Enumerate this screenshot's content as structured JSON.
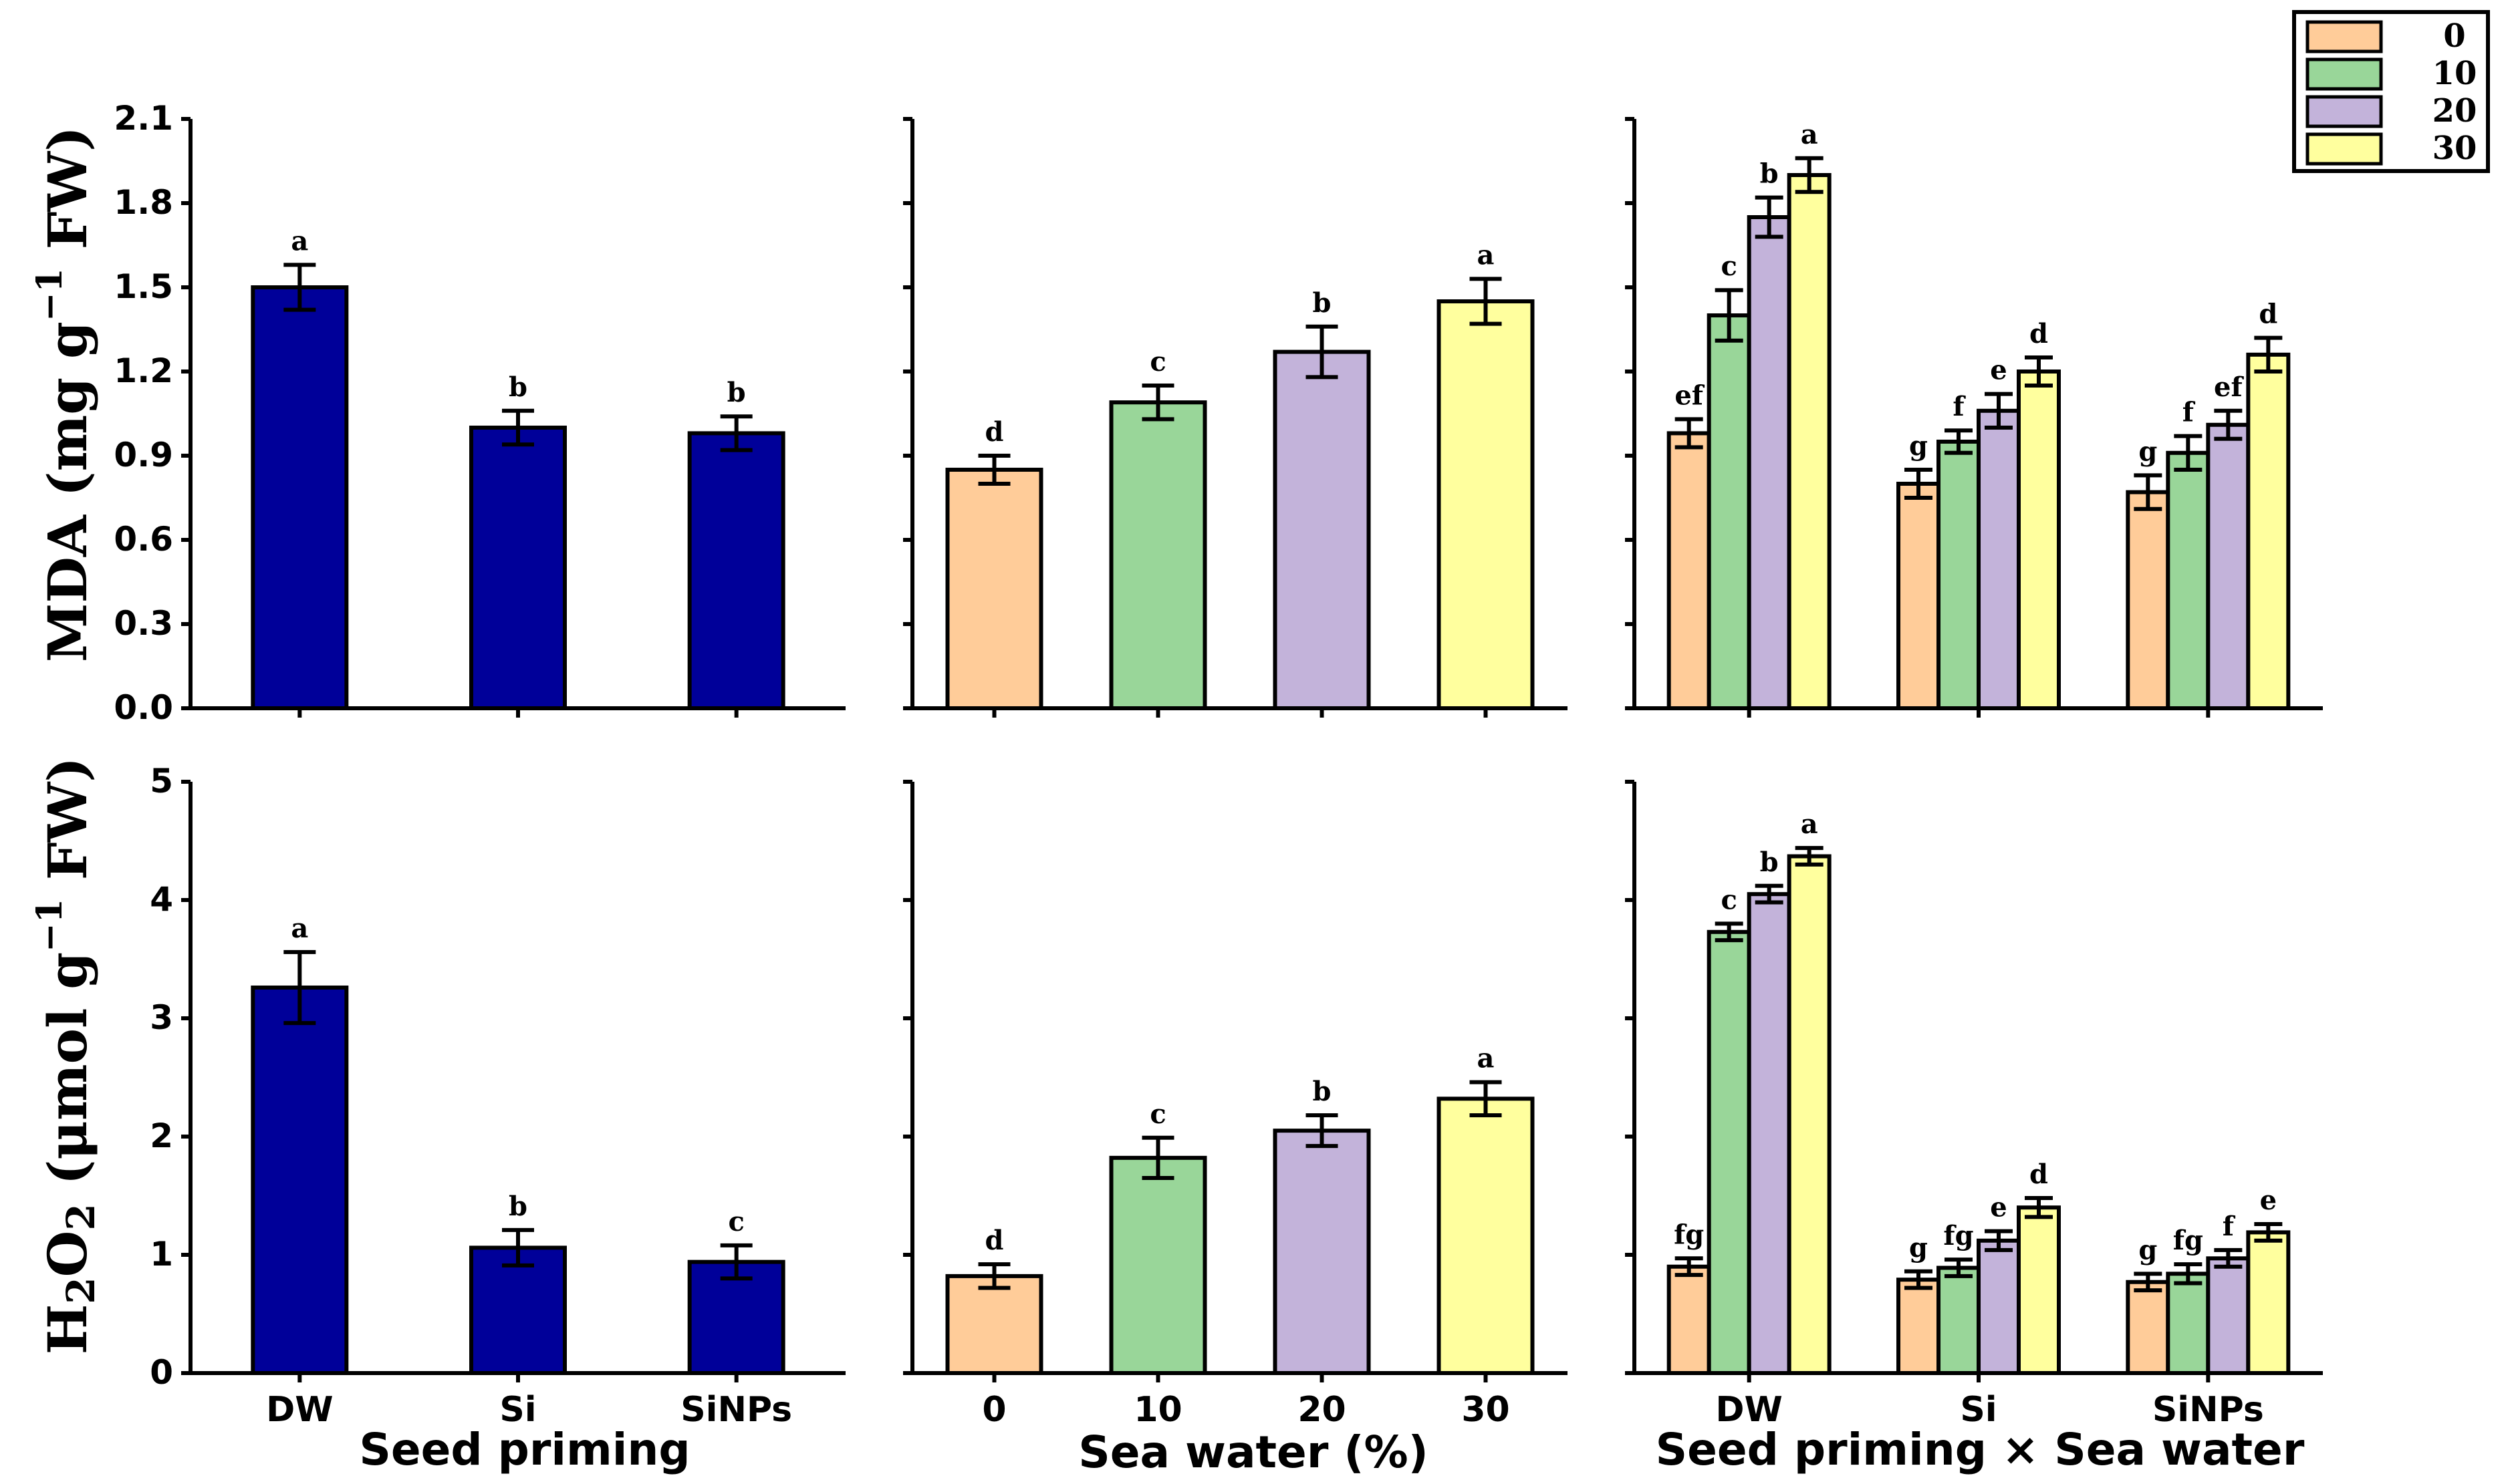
{
  "legend": {
    "title": "",
    "entries": [
      {
        "label": "0",
        "color": "#FFCC99"
      },
      {
        "label": "10",
        "color": "#99D699"
      },
      {
        "label": "20",
        "color": "#C3B3DA"
      },
      {
        "label": "30",
        "color": "#FFFF9E"
      }
    ]
  },
  "colors": {
    "seed_bar": "#000099",
    "sw0": "#FFCC99",
    "sw10": "#99D699",
    "sw20": "#C3B3DA",
    "sw30": "#FFFF9E"
  },
  "xlabels": {
    "seed": "Seed priming",
    "sea": "Sea water (%)",
    "inter": "Seed priming × Sea water"
  },
  "chart_data": [
    {
      "id": "mda-seed",
      "type": "bar",
      "title": "",
      "ylabel": "MDA (mg g−1 FW)",
      "xlabel": "Seed priming",
      "ylim": [
        0,
        2.1
      ],
      "yticks": [
        "0.0",
        "0.3",
        "0.6",
        "0.9",
        "1.2",
        "1.5",
        "1.8",
        "2.1"
      ],
      "categories": [
        "DW",
        "Si",
        "SiNPs"
      ],
      "values": [
        1.5,
        1.0,
        0.98
      ],
      "errors": [
        0.08,
        0.06,
        0.06
      ],
      "letters": [
        "a",
        "b",
        "b"
      ]
    },
    {
      "id": "mda-sea",
      "type": "bar",
      "title": "",
      "xlabel": "Sea water (%)",
      "ylim": [
        0,
        2.1
      ],
      "categories": [
        "0",
        "10",
        "20",
        "30"
      ],
      "values": [
        0.85,
        1.09,
        1.27,
        1.45
      ],
      "errors": [
        0.05,
        0.06,
        0.09,
        0.08
      ],
      "letters": [
        "d",
        "c",
        "b",
        "a"
      ]
    },
    {
      "id": "mda-inter",
      "type": "bar",
      "title": "",
      "xlabel": "Seed priming × Sea water",
      "ylim": [
        0,
        2.1
      ],
      "categories": [
        "DW",
        "Si",
        "SiNPs"
      ],
      "series": [
        {
          "name": "0",
          "values": [
            0.98,
            0.8,
            0.77
          ],
          "errors": [
            0.05,
            0.05,
            0.06
          ],
          "letters": [
            "ef",
            "g",
            "g"
          ]
        },
        {
          "name": "10",
          "values": [
            1.4,
            0.95,
            0.91
          ],
          "errors": [
            0.09,
            0.04,
            0.06
          ],
          "letters": [
            "c",
            "f",
            "f"
          ]
        },
        {
          "name": "20",
          "values": [
            1.75,
            1.06,
            1.01
          ],
          "errors": [
            0.07,
            0.06,
            0.05
          ],
          "letters": [
            "b",
            "e",
            "ef"
          ]
        },
        {
          "name": "30",
          "values": [
            1.9,
            1.2,
            1.26
          ],
          "errors": [
            0.06,
            0.05,
            0.06
          ],
          "letters": [
            "a",
            "d",
            "d"
          ]
        }
      ]
    },
    {
      "id": "h2o2-seed",
      "type": "bar",
      "title": "",
      "ylabel": "H2O2 (μmol g−1 FW)",
      "xlabel": "Seed priming",
      "ylim": [
        0,
        5
      ],
      "yticks": [
        "0",
        "1",
        "2",
        "3",
        "4",
        "5"
      ],
      "categories": [
        "DW",
        "Si",
        "SiNPs"
      ],
      "values": [
        3.26,
        1.06,
        0.94
      ],
      "errors": [
        0.3,
        0.15,
        0.14
      ],
      "letters": [
        "a",
        "b",
        "c"
      ]
    },
    {
      "id": "h2o2-sea",
      "type": "bar",
      "title": "",
      "xlabel": "Sea water (%)",
      "ylim": [
        0,
        5
      ],
      "categories": [
        "0",
        "10",
        "20",
        "30"
      ],
      "values": [
        0.82,
        1.82,
        2.05,
        2.32
      ],
      "errors": [
        0.1,
        0.17,
        0.13,
        0.14
      ],
      "letters": [
        "d",
        "c",
        "b",
        "a"
      ]
    },
    {
      "id": "h2o2-inter",
      "type": "bar",
      "title": "",
      "xlabel": "Seed priming × Sea water",
      "ylim": [
        0,
        5
      ],
      "categories": [
        "DW",
        "Si",
        "SiNPs"
      ],
      "series": [
        {
          "name": "0",
          "values": [
            0.9,
            0.79,
            0.77
          ],
          "errors": [
            0.07,
            0.07,
            0.07
          ],
          "letters": [
            "fg",
            "g",
            "g"
          ]
        },
        {
          "name": "10",
          "values": [
            3.73,
            0.89,
            0.84
          ],
          "errors": [
            0.07,
            0.07,
            0.08
          ],
          "letters": [
            "c",
            "fg",
            "fg"
          ]
        },
        {
          "name": "20",
          "values": [
            4.05,
            1.12,
            0.97
          ],
          "errors": [
            0.07,
            0.08,
            0.07
          ],
          "letters": [
            "b",
            "e",
            "f"
          ]
        },
        {
          "name": "30",
          "values": [
            4.37,
            1.4,
            1.19
          ],
          "errors": [
            0.07,
            0.08,
            0.07
          ],
          "letters": [
            "a",
            "d",
            "e"
          ]
        }
      ]
    }
  ]
}
